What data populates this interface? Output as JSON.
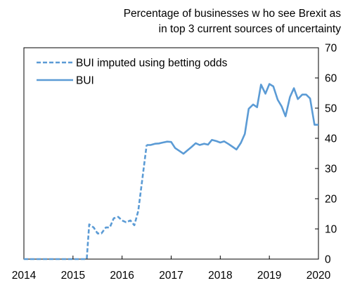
{
  "chart_data": {
    "type": "line",
    "ylabel_lines": [
      "Percentage  of businesses  w ho see Brexit as",
      "in top 3 current sources of uncertainty"
    ],
    "x_ticks": [
      "2014",
      "2015",
      "2016",
      "2017",
      "2018",
      "2019",
      "2020"
    ],
    "y_ticks": [
      "0",
      "10",
      "20",
      "30",
      "40",
      "50",
      "60",
      "70"
    ],
    "xlim": [
      2014,
      2020
    ],
    "ylim": [
      0,
      70
    ],
    "grid": false,
    "legend_position": "top-left",
    "line_color": "#5B9BD5",
    "series": [
      {
        "name": "BUI imputed using betting odds",
        "style": "dashed",
        "x": [
          2014.0,
          2015.0,
          2015.28,
          2015.33,
          2015.42,
          2015.5,
          2015.58,
          2015.67,
          2015.75,
          2015.83,
          2015.92,
          2016.0,
          2016.08,
          2016.17,
          2016.25,
          2016.33,
          2016.42,
          2016.5
        ],
        "y": [
          0,
          0,
          0,
          11.5,
          10.5,
          8.5,
          8.5,
          10.5,
          10.5,
          13.5,
          14.0,
          12.8,
          12.2,
          12.8,
          11.2,
          16.0,
          27.5,
          37.8
        ]
      },
      {
        "name": "BUI",
        "style": "solid",
        "x": [
          2016.5,
          2016.58,
          2016.67,
          2016.75,
          2016.83,
          2016.92,
          2017.0,
          2017.08,
          2017.17,
          2017.25,
          2017.33,
          2017.42,
          2017.5,
          2017.58,
          2017.67,
          2017.75,
          2017.83,
          2017.92,
          2018.0,
          2018.08,
          2018.17,
          2018.25,
          2018.33,
          2018.42,
          2018.5,
          2018.58,
          2018.67,
          2018.75,
          2018.83,
          2018.92,
          2019.0,
          2019.08,
          2019.17,
          2019.25,
          2019.33,
          2019.42,
          2019.5,
          2019.58,
          2019.67,
          2019.75,
          2019.83,
          2019.92,
          2020.0
        ],
        "y": [
          37.8,
          37.8,
          38.2,
          38.3,
          38.6,
          38.9,
          38.8,
          36.8,
          35.8,
          34.9,
          36.0,
          37.2,
          38.4,
          37.8,
          38.2,
          37.9,
          39.5,
          39.1,
          38.6,
          39.0,
          38.1,
          37.2,
          36.3,
          38.5,
          41.5,
          49.8,
          51.2,
          50.3,
          57.8,
          54.8,
          58.0,
          57.2,
          52.8,
          50.6,
          47.3,
          53.7,
          56.6,
          53.0,
          54.5,
          54.5,
          53.2,
          44.5,
          44.5
        ]
      }
    ]
  }
}
